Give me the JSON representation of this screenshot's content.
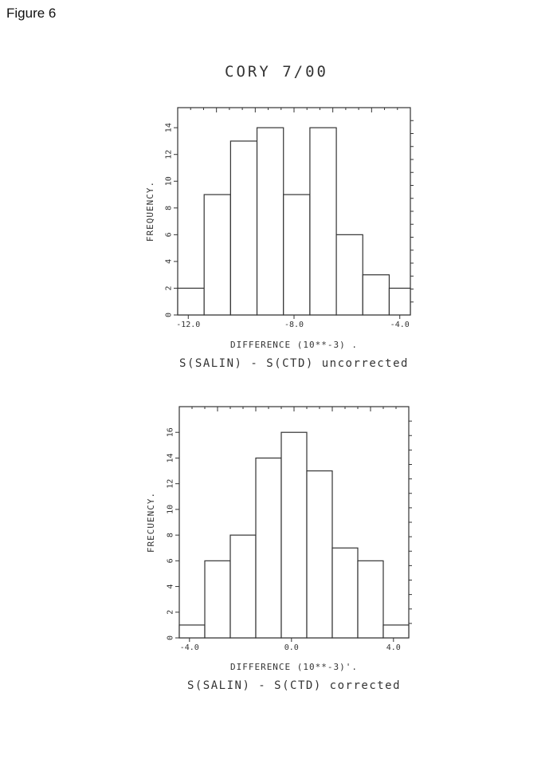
{
  "figure_label": "Figure 6",
  "title": "CORY 7/00",
  "chart_data": [
    {
      "type": "bar",
      "ylabel": "FREQUENCY.",
      "xlabel": "DIFFERENCE (10**-3) .",
      "caption": "S(SALIN)  -  S(CTD) uncorrected",
      "xlim": [
        -12.4,
        -3.6
      ],
      "ylim": [
        0,
        15.5
      ],
      "yticks": [
        "0",
        "2",
        "4",
        "6",
        "8",
        "10",
        "12",
        "14"
      ],
      "ytick_values": [
        0,
        2,
        4,
        6,
        8,
        10,
        12,
        14
      ],
      "xticks": [
        "-12.0",
        "-8.0",
        "-4.0"
      ],
      "xtick_values": [
        -12.0,
        -8.0,
        -4.0
      ],
      "bin_edges": [
        -12.4,
        -11.4,
        -10.4,
        -9.4,
        -8.4,
        -7.4,
        -6.4,
        -5.4,
        -4.4,
        -3.6
      ],
      "values": [
        2,
        9,
        13,
        14,
        9,
        14,
        6,
        3,
        2
      ]
    },
    {
      "type": "bar",
      "ylabel": "FRECUENCY.",
      "xlabel": "DIFFERENCE (10**-3)'.",
      "caption": "S(SALIN)  -  S(CTD) corrected",
      "xlim": [
        -4.4,
        4.6
      ],
      "ylim": [
        0,
        18
      ],
      "yticks": [
        "0",
        "2",
        "4",
        "6",
        "8",
        "10",
        "12",
        "14",
        "16"
      ],
      "ytick_values": [
        0,
        2,
        4,
        6,
        8,
        10,
        12,
        14,
        16
      ],
      "xticks": [
        "-4.0",
        "0.0",
        "4.0"
      ],
      "xtick_values": [
        -4.0,
        0.0,
        4.0
      ],
      "bin_edges": [
        -4.4,
        -3.4,
        -2.4,
        -1.4,
        -0.4,
        0.6,
        1.6,
        2.6,
        3.6,
        4.6
      ],
      "values": [
        1,
        6,
        8,
        14,
        16,
        13,
        7,
        6,
        1
      ]
    }
  ]
}
